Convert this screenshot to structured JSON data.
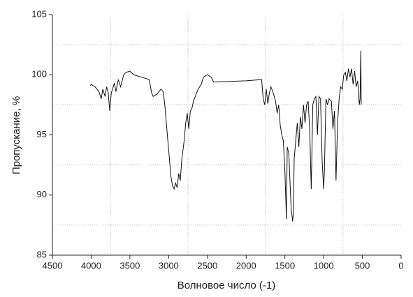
{
  "chart_data": {
    "type": "line",
    "x_label": "Волновое число (-1)",
    "y_label": "Пропускание, %",
    "x": [
      4010,
      4000,
      3950,
      3900,
      3870,
      3850,
      3820,
      3800,
      3780,
      3760,
      3740,
      3700,
      3680,
      3650,
      3620,
      3580,
      3550,
      3500,
      3450,
      3400,
      3350,
      3300,
      3250,
      3220,
      3200,
      3150,
      3100,
      3070,
      3050,
      3030,
      3010,
      2990,
      2970,
      2950,
      2930,
      2910,
      2890,
      2870,
      2850,
      2830,
      2800,
      2780,
      2760,
      2740,
      2720,
      2700,
      2680,
      2650,
      2620,
      2580,
      2550,
      2500,
      2450,
      2420,
      2000,
      1800,
      1780,
      1760,
      1740,
      1720,
      1700,
      1680,
      1650,
      1620,
      1600,
      1580,
      1560,
      1540,
      1520,
      1500,
      1480,
      1470,
      1450,
      1420,
      1400,
      1390,
      1380,
      1360,
      1340,
      1320,
      1300,
      1280,
      1260,
      1240,
      1220,
      1200,
      1180,
      1160,
      1140,
      1120,
      1100,
      1080,
      1060,
      1040,
      1020,
      1000,
      990,
      970,
      950,
      930,
      900,
      880,
      860,
      840,
      820,
      800,
      780,
      760,
      740,
      720,
      700,
      680,
      660,
      640,
      620,
      600,
      580,
      560,
      540,
      530,
      520,
      515
    ],
    "values": [
      99.1,
      99.2,
      99.0,
      98.6,
      98.0,
      98.8,
      98.2,
      99.0,
      98.5,
      97.0,
      98.5,
      99.3,
      98.6,
      99.6,
      99.0,
      100.0,
      100.2,
      100.3,
      100.0,
      99.9,
      99.8,
      99.7,
      99.6,
      98.5,
      98.2,
      98.4,
      98.8,
      98.6,
      97.5,
      96.0,
      94.5,
      93.0,
      91.5,
      90.8,
      90.5,
      91.0,
      90.6,
      91.8,
      91.2,
      93.0,
      94.5,
      96.0,
      96.8,
      95.5,
      97.0,
      97.2,
      97.8,
      98.3,
      98.8,
      99.2,
      99.8,
      100.0,
      99.8,
      99.4,
      99.5,
      99.6,
      98.0,
      97.5,
      98.8,
      97.6,
      98.5,
      99.0,
      98.5,
      97.8,
      96.8,
      97.5,
      95.8,
      95.0,
      94.5,
      92.0,
      88.0,
      94.0,
      93.5,
      89.0,
      87.8,
      88.5,
      93.0,
      94.5,
      96.0,
      94.0,
      96.5,
      95.5,
      97.5,
      96.0,
      97.5,
      97.8,
      95.5,
      90.5,
      97.5,
      98.0,
      98.2,
      95.0,
      98.2,
      98.0,
      93.0,
      90.5,
      92.0,
      98.0,
      97.5,
      98.0,
      97.8,
      95.5,
      97.0,
      91.2,
      96.0,
      98.0,
      99.0,
      98.8,
      100.0,
      100.2,
      99.5,
      100.5,
      99.8,
      100.5,
      99.2,
      100.3,
      99.0,
      99.5,
      97.5,
      98.0,
      102.0,
      97.5
    ],
    "color": "#111111",
    "xlim": [
      4500,
      0
    ],
    "xticks": [
      4500,
      4000,
      3500,
      3000,
      2500,
      2000,
      1500,
      1000,
      500,
      0
    ],
    "ylim": [
      85,
      105
    ],
    "yticks": [
      85,
      90,
      95,
      100,
      105
    ],
    "grid_x": [
      3750,
      2750,
      1750,
      750
    ],
    "grid_y": [
      102.5,
      97.5,
      92.5,
      87.5
    ]
  }
}
